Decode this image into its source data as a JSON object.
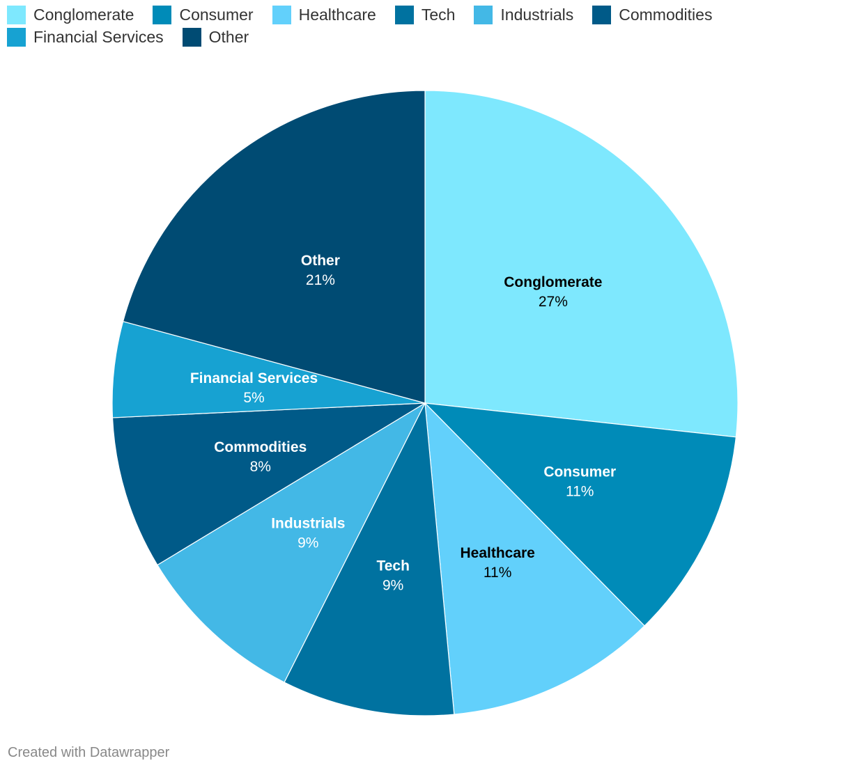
{
  "chart_data": {
    "type": "pie",
    "title": "",
    "categories": [
      "Conglomerate",
      "Consumer",
      "Healthcare",
      "Tech",
      "Industrials",
      "Commodities",
      "Financial Services",
      "Other"
    ],
    "values": [
      27,
      11,
      11,
      9,
      9,
      8,
      5,
      21
    ],
    "value_labels": [
      "27%",
      "11%",
      "11%",
      "9%",
      "9%",
      "8%",
      "5%",
      "21%"
    ],
    "colors": [
      "#7ee8fe",
      "#008bb8",
      "#62d0fb",
      "#0072a0",
      "#43b8e6",
      "#005a88",
      "#17a2d2",
      "#004b73"
    ],
    "label_colors": [
      "#000000",
      "#ffffff",
      "#000000",
      "#ffffff",
      "#ffffff",
      "#ffffff",
      "#ffffff",
      "#ffffff"
    ],
    "legend_position": "top",
    "start_angle_deg": 0,
    "direction": "clockwise"
  },
  "footer": {
    "credit": "Created with Datawrapper"
  }
}
